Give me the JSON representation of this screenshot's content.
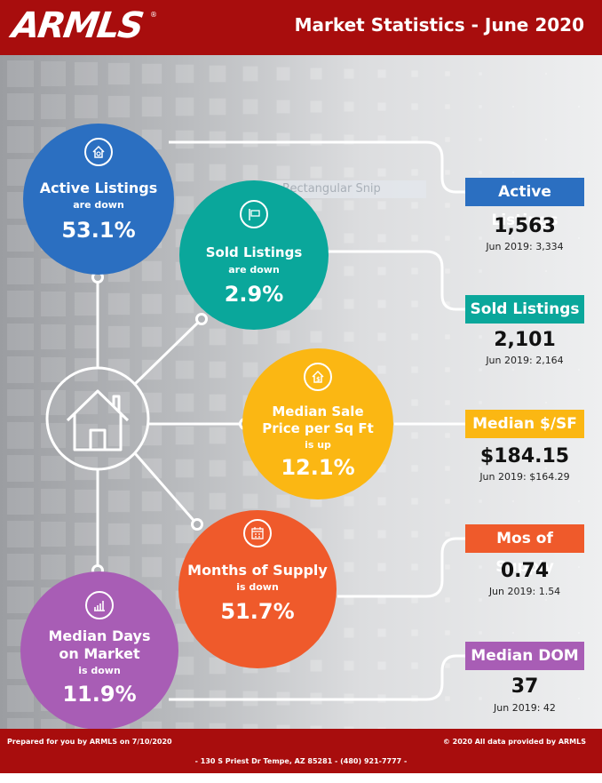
{
  "header": {
    "logo": "ARMLS",
    "registered": "®",
    "title": "Market Statistics - June 2020"
  },
  "snip": {
    "label": "Rectangular Snip"
  },
  "circles": [
    {
      "key": "active",
      "icon": "house-search-icon",
      "title": "Active Listings",
      "sub": "are down",
      "pct": "53.1%",
      "color": "#2b6fc1"
    },
    {
      "key": "sold",
      "icon": "sold-sign-icon",
      "title": "Sold Listings",
      "sub": "are down",
      "pct": "2.9%",
      "color": "#0aa79b"
    },
    {
      "key": "price",
      "icon": "house-dollar-icon",
      "title_line1": "Median Sale",
      "title_line2": "Price per Sq Ft",
      "sub": "is up",
      "pct": "12.1%",
      "color": "#fbb713"
    },
    {
      "key": "supply",
      "icon": "calendar-icon",
      "title": "Months of Supply",
      "sub": "is down",
      "pct": "51.7%",
      "color": "#ef5a2b"
    },
    {
      "key": "dom",
      "icon": "bar-chart-icon",
      "title_line1": "Median Days",
      "title_line2": "on Market",
      "sub": "is down",
      "pct": "11.9%",
      "color": "#a85db5"
    }
  ],
  "stats": [
    {
      "label": "Active Listings",
      "value": "1,563",
      "prior": "Jun 2019: 3,334",
      "color": "#2b6fc1"
    },
    {
      "label": "Sold Listings",
      "value": "2,101",
      "prior": "Jun 2019: 2,164",
      "color": "#0aa79b"
    },
    {
      "label": "Median $/SF",
      "value": "$184.15",
      "prior": "Jun 2019: $164.29",
      "color": "#fbb713"
    },
    {
      "label": "Mos of Supply",
      "value": "0.74",
      "prior": "Jun 2019: 1.54",
      "color": "#ef5a2b"
    },
    {
      "label": "Median DOM",
      "value": "37",
      "prior": "Jun 2019: 42",
      "color": "#a85db5"
    }
  ],
  "footer": {
    "prepared": "Prepared for you by ARMLS on 7/10/2020",
    "copyright": "© 2020 All data provided by ARMLS",
    "address": "- 130 S Priest Dr   Tempe, AZ 85281 - (480) 921-7777 -"
  }
}
